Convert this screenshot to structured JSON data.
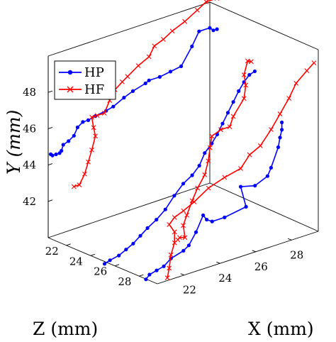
{
  "chart_data": {
    "type": "line3d",
    "title": "",
    "xlabel": "X (mm)",
    "ylabel": "Y (mm)",
    "zlabel": "Z (mm)",
    "x_ticks": [
      "22",
      "24",
      "26",
      "28"
    ],
    "y_ticks": [
      "42",
      "44",
      "46",
      "48"
    ],
    "z_ticks": [
      "22",
      "24",
      "26",
      "28"
    ],
    "xlim": [
      20.5,
      29.5
    ],
    "ylim": [
      40,
      50
    ],
    "zlim": [
      20.5,
      29.5
    ],
    "grid": false,
    "legend_position": "top-left",
    "series": [
      {
        "name": "HP",
        "color": "#0000ff",
        "marker": "dot",
        "strands": [
          {
            "z_level": 21.0,
            "points": [
              [
                20.3,
                44.8
              ],
              [
                20.4,
                44.7
              ],
              [
                20.6,
                44.7
              ],
              [
                20.8,
                44.7
              ],
              [
                20.9,
                44.8
              ],
              [
                21.0,
                45.1
              ],
              [
                21.3,
                45.2
              ],
              [
                21.6,
                45.4
              ],
              [
                21.8,
                45.8
              ],
              [
                22.1,
                46.0
              ],
              [
                22.4,
                46.0
              ],
              [
                22.8,
                46.1
              ],
              [
                23.4,
                46.2
              ],
              [
                23.8,
                46.3
              ],
              [
                24.4,
                46.6
              ],
              [
                24.9,
                46.8
              ],
              [
                25.6,
                47.0
              ],
              [
                25.8,
                47.1
              ],
              [
                26.4,
                47.1
              ],
              [
                27.0,
                47.2
              ],
              [
                27.6,
                47.3
              ],
              [
                28.2,
                48.2
              ],
              [
                28.6,
                48.9
              ],
              [
                29.2,
                48.9
              ],
              [
                29.4,
                48.7
              ],
              [
                29.6,
                48.7
              ]
            ]
          },
          {
            "z_level": 29.0,
            "points": [
              [
                20.2,
                40.2
              ],
              [
                20.4,
                40.4
              ],
              [
                20.8,
                40.5
              ],
              [
                21.2,
                40.6
              ],
              [
                21.6,
                40.9
              ],
              [
                22.3,
                41.1
              ],
              [
                22.6,
                41.3
              ],
              [
                23.0,
                41.9
              ],
              [
                23.4,
                42.7
              ],
              [
                23.6,
                42.4
              ],
              [
                23.9,
                42.2
              ],
              [
                24.6,
                42.2
              ],
              [
                25.8,
                42.4
              ],
              [
                25.5,
                43.6
              ],
              [
                26.3,
                43.4
              ],
              [
                27.0,
                43.7
              ],
              [
                27.2,
                44.1
              ],
              [
                27.6,
                45.1
              ],
              [
                27.7,
                45.6
              ],
              [
                27.8,
                46.0
              ],
              [
                27.8,
                46.4
              ]
            ]
          },
          {
            "z_level": 25.0,
            "points": [
              [
                20.6,
                39.8
              ],
              [
                20.9,
                39.9
              ],
              [
                21.4,
                40.0
              ],
              [
                21.8,
                40.2
              ],
              [
                22.2,
                40.4
              ],
              [
                22.6,
                40.7
              ],
              [
                23.0,
                41.0
              ],
              [
                23.5,
                41.3
              ],
              [
                24.0,
                41.7
              ],
              [
                24.5,
                42.3
              ],
              [
                25.0,
                42.8
              ],
              [
                25.5,
                43.1
              ],
              [
                25.9,
                43.5
              ],
              [
                26.2,
                44.1
              ],
              [
                26.6,
                44.5
              ],
              [
                26.9,
                44.9
              ],
              [
                27.2,
                45.4
              ],
              [
                27.5,
                45.9
              ],
              [
                27.8,
                46.4
              ],
              [
                28.1,
                46.9
              ],
              [
                28.4,
                47.3
              ],
              [
                28.7,
                47.6
              ],
              [
                29.0,
                47.7
              ]
            ]
          }
        ]
      },
      {
        "name": "HF",
        "color": "#ff0000",
        "marker": "x",
        "strands": [
          {
            "z_level": 21.0,
            "points": [
              [
                21.6,
                42.6
              ],
              [
                21.9,
                42.6
              ],
              [
                22.2,
                43.1
              ],
              [
                22.4,
                43.7
              ],
              [
                22.6,
                44.3
              ],
              [
                22.8,
                45.0
              ],
              [
                22.7,
                45.5
              ],
              [
                22.6,
                46.1
              ],
              [
                22.9,
                46.1
              ],
              [
                23.3,
                46.1
              ],
              [
                23.6,
                46.7
              ],
              [
                23.9,
                47.2
              ],
              [
                24.3,
                47.5
              ],
              [
                24.6,
                47.7
              ],
              [
                25.2,
                48.1
              ],
              [
                25.8,
                48.4
              ],
              [
                26.1,
                48.9
              ],
              [
                26.6,
                49.1
              ],
              [
                27.1,
                49.4
              ],
              [
                27.8,
                49.7
              ],
              [
                28.5,
                50.1
              ],
              [
                29.0,
                50.4
              ],
              [
                29.6,
                50.4
              ],
              [
                30.2,
                50.3
              ]
            ]
          },
          {
            "z_level": 29.0,
            "points": [
              [
                21.4,
                39.9
              ],
              [
                21.5,
                40.4
              ],
              [
                21.6,
                41.1
              ],
              [
                21.8,
                41.7
              ],
              [
                21.8,
                42.3
              ],
              [
                21.5,
                42.8
              ],
              [
                21.8,
                43.1
              ],
              [
                22.3,
                43.3
              ],
              [
                22.9,
                43.6
              ],
              [
                23.7,
                44.1
              ],
              [
                24.6,
                44.4
              ],
              [
                25.5,
                44.6
              ],
              [
                26.0,
                45.2
              ],
              [
                26.6,
                45.5
              ],
              [
                27.2,
                46.2
              ],
              [
                27.7,
                46.9
              ],
              [
                28.2,
                47.6
              ],
              [
                28.6,
                48.3
              ],
              [
                29.2,
                48.8
              ],
              [
                29.6,
                49.1
              ]
            ]
          },
          {
            "z_level": 25.0,
            "points": [
              [
                24.7,
                39.8
              ],
              [
                24.8,
                39.9
              ],
              [
                25.1,
                39.8
              ],
              [
                25.0,
                40.5
              ],
              [
                25.2,
                41.0
              ],
              [
                25.5,
                41.7
              ],
              [
                25.8,
                42.3
              ],
              [
                26.2,
                42.9
              ],
              [
                26.4,
                43.6
              ],
              [
                26.5,
                44.3
              ],
              [
                26.6,
                44.9
              ],
              [
                27.1,
                45.1
              ],
              [
                27.6,
                45.1
              ],
              [
                27.8,
                45.6
              ],
              [
                28.4,
                46.4
              ],
              [
                28.5,
                47.1
              ],
              [
                28.4,
                47.7
              ],
              [
                28.6,
                48.4
              ],
              [
                28.8,
                48.3
              ]
            ]
          }
        ]
      }
    ]
  }
}
